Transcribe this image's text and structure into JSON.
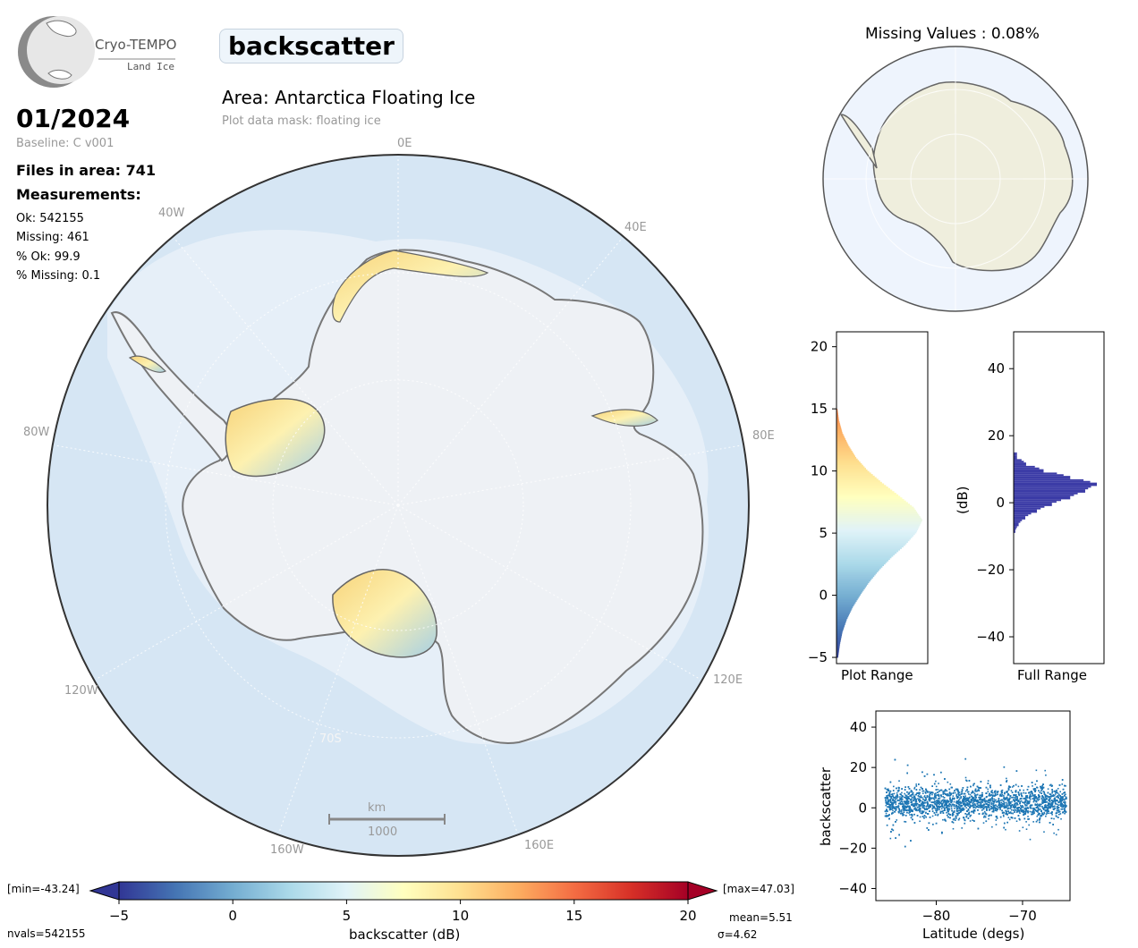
{
  "header": {
    "logo_name": "Cryo-TEMPO",
    "logo_sub": "Land Ice",
    "title": "backscatter",
    "area": "Area: Antarctica Floating Ice",
    "mask": "Plot data mask: floating ice",
    "date": "01/2024",
    "baseline": "Baseline: C v001",
    "files": "Files in area: 741",
    "measurements_heading": "Measurements:",
    "ok": "Ok: 542155",
    "missing": "Missing: 461",
    "pct_ok": "% Ok: 99.9",
    "pct_missing": "% Missing: 0.1"
  },
  "map": {
    "lon_labels": [
      "0E",
      "40E",
      "80E",
      "120E",
      "160E",
      "160W",
      "120W",
      "80W",
      "40W"
    ],
    "lat_label": "70S",
    "scale_unit": "km",
    "scale_value": "1000"
  },
  "inset": {
    "title": "Missing Values : 0.08%"
  },
  "colorbar": {
    "min_label": "[min=-43.24]",
    "max_label": "[max=47.03]",
    "ticks": [
      "−5",
      "0",
      "5",
      "10",
      "15",
      "20"
    ],
    "label": "backscatter (dB)",
    "nvals": "nvals=542155",
    "mean": "mean=5.51",
    "sigma": "σ=4.62"
  },
  "colors": {
    "histogram_full": "#3b3ba6",
    "scatter": "#1f77b4",
    "ocean": "#d6e6f4",
    "ice": "#eef1f5"
  },
  "chart_data": [
    {
      "type": "bar",
      "name": "plot_range_histogram",
      "xlabel": "Plot Range",
      "orientation": "horizontal",
      "ylim": [
        -5.5,
        21.2
      ],
      "yticks": [
        -5,
        0,
        5,
        10,
        15,
        20
      ],
      "colormap": "RdYlBu_r",
      "bins_center": [
        -5,
        -4,
        -3,
        -2,
        -1,
        0,
        1,
        2,
        3,
        4,
        5,
        6,
        7,
        8,
        9,
        10,
        11,
        12,
        13,
        14,
        15
      ],
      "counts_relative": [
        0.02,
        0.04,
        0.07,
        0.12,
        0.19,
        0.28,
        0.38,
        0.5,
        0.64,
        0.8,
        0.93,
        1.0,
        0.9,
        0.72,
        0.53,
        0.36,
        0.23,
        0.14,
        0.07,
        0.03,
        0.01
      ]
    },
    {
      "type": "bar",
      "name": "full_range_histogram",
      "xlabel": "Full Range",
      "ylabel": "(dB)",
      "orientation": "horizontal",
      "ylim": [
        -48,
        51
      ],
      "yticks": [
        -40,
        -20,
        0,
        20,
        40
      ],
      "bins_center": [
        -8,
        -6,
        -4,
        -2,
        0,
        2,
        4,
        6,
        8,
        10,
        12,
        14
      ],
      "counts_relative": [
        0.02,
        0.06,
        0.14,
        0.28,
        0.46,
        0.68,
        0.86,
        1.0,
        0.68,
        0.36,
        0.15,
        0.04
      ]
    },
    {
      "type": "scatter",
      "name": "latitude_scatter",
      "xlabel": "Latitude (degs)",
      "ylabel": "backscatter",
      "xlim": [
        -87,
        -64.5
      ],
      "ylim": [
        -46,
        48
      ],
      "xticks": [
        -80,
        -70
      ],
      "yticks": [
        -40,
        -20,
        0,
        20,
        40
      ],
      "x_range": [
        -86,
        -65
      ],
      "y_core_range": [
        -10,
        18
      ],
      "y_extreme_range": [
        -43.24,
        47.03
      ]
    },
    {
      "type": "colorbar",
      "name": "backscatter_colorbar",
      "range": [
        -5,
        20
      ],
      "ticks": [
        -5,
        0,
        5,
        10,
        15,
        20
      ],
      "colormap": "RdYlBu_r"
    }
  ]
}
